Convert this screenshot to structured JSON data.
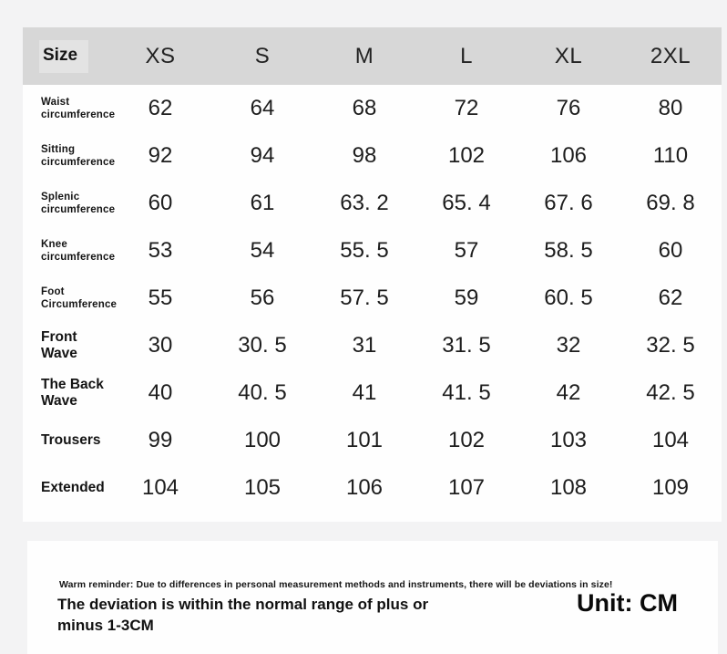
{
  "colors": {
    "page_bg": "#f3f3f4",
    "card_bg": "#fefefe",
    "header_bg": "#d7d7d7",
    "text": "#1b1b1b"
  },
  "table": {
    "header": {
      "label": "Size",
      "columns": [
        "XS",
        "S",
        "M",
        "L",
        "XL",
        "2XL"
      ]
    },
    "rows": [
      {
        "label": "Waist\ncircumference",
        "style": "small",
        "values": [
          "62",
          "64",
          "68",
          "72",
          "76",
          "80"
        ]
      },
      {
        "label": "Sitting\ncircumference",
        "style": "small",
        "values": [
          "92",
          "94",
          "98",
          "102",
          "106",
          "110"
        ]
      },
      {
        "label": "Splenic\ncircumference",
        "style": "small",
        "values": [
          "60",
          "61",
          "63. 2",
          "65. 4",
          "67. 6",
          "69. 8"
        ]
      },
      {
        "label": "Knee\ncircumference",
        "style": "small",
        "values": [
          "53",
          "54",
          "55. 5",
          "57",
          "58. 5",
          "60"
        ]
      },
      {
        "label": "Foot\nCircumference",
        "style": "small",
        "values": [
          "55",
          "56",
          "57. 5",
          "59",
          "60. 5",
          "62"
        ]
      },
      {
        "label": "Front\nWave",
        "style": "large",
        "values": [
          "30",
          "30. 5",
          "31",
          "31. 5",
          "32",
          "32. 5"
        ]
      },
      {
        "label": "The Back\nWave",
        "style": "large",
        "values": [
          "40",
          "40. 5",
          "41",
          "41. 5",
          "42",
          "42. 5"
        ]
      },
      {
        "label": "Trousers",
        "style": "large",
        "values": [
          "99",
          "100",
          "101",
          "102",
          "103",
          "104"
        ]
      },
      {
        "label": "Extended",
        "style": "large",
        "values": [
          "104",
          "105",
          "106",
          "107",
          "108",
          "109"
        ]
      }
    ]
  },
  "footer": {
    "reminder": "Warm reminder: Due to differences in personal measurement methods and instruments, there will be deviations in size!",
    "deviation": "The deviation is within the normal range of plus or\nminus 1-3CM",
    "unit": "Unit: CM"
  },
  "chart_data": {
    "type": "table",
    "title": "Size",
    "unit": "CM",
    "columns": [
      "XS",
      "S",
      "M",
      "L",
      "XL",
      "2XL"
    ],
    "rows": [
      {
        "name": "Waist circumference",
        "values": [
          62,
          64,
          68,
          72,
          76,
          80
        ]
      },
      {
        "name": "Sitting circumference",
        "values": [
          92,
          94,
          98,
          102,
          106,
          110
        ]
      },
      {
        "name": "Splenic circumference",
        "values": [
          60,
          61,
          63.2,
          65.4,
          67.6,
          69.8
        ]
      },
      {
        "name": "Knee circumference",
        "values": [
          53,
          54,
          55.5,
          57,
          58.5,
          60
        ]
      },
      {
        "name": "Foot Circumference",
        "values": [
          55,
          56,
          57.5,
          59,
          60.5,
          62
        ]
      },
      {
        "name": "Front Wave",
        "values": [
          30,
          30.5,
          31,
          31.5,
          32,
          32.5
        ]
      },
      {
        "name": "The Back Wave",
        "values": [
          40,
          40.5,
          41,
          41.5,
          42,
          42.5
        ]
      },
      {
        "name": "Trousers",
        "values": [
          99,
          100,
          101,
          102,
          103,
          104
        ]
      },
      {
        "name": "Extended",
        "values": [
          104,
          105,
          106,
          107,
          108,
          109
        ]
      }
    ],
    "notes": [
      "Warm reminder: Due to differences in personal measurement methods and instruments, there will be deviations in size!",
      "The deviation is within the normal range of plus or minus 1-3CM"
    ]
  }
}
